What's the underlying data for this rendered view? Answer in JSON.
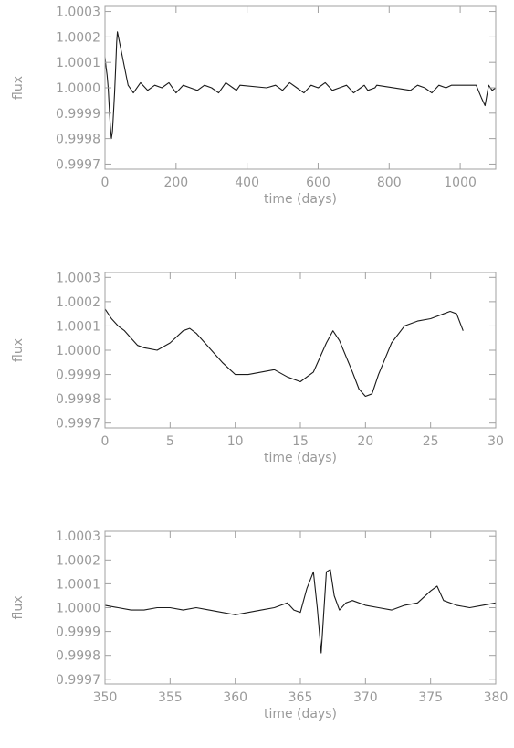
{
  "chart_data": [
    {
      "type": "line",
      "xlabel": "time (days)",
      "ylabel": "flux",
      "xlim": [
        0,
        1100
      ],
      "ylim": [
        0.99968,
        1.00032
      ],
      "xticks": [
        0,
        200,
        400,
        600,
        800,
        1000
      ],
      "xtick_labels": [
        "0",
        "200",
        "400",
        "600",
        "800",
        "1000"
      ],
      "yticks": [
        0.9997,
        0.9998,
        0.9999,
        1.0,
        1.0001,
        1.0002,
        1.0003
      ],
      "ytick_labels": [
        "0.9997",
        "0.9998",
        "0.9999",
        "1.0000",
        "1.0001",
        "1.0002",
        "1.0003"
      ],
      "grid": false,
      "series": [
        {
          "x": [
            0,
            3,
            6,
            9,
            12,
            15,
            18,
            21,
            24,
            27,
            30,
            33,
            35,
            65,
            80,
            100,
            120,
            140,
            160,
            180,
            200,
            220,
            240,
            260,
            280,
            300,
            320,
            340,
            360,
            370,
            380,
            455,
            480,
            500,
            520,
            540,
            560,
            580,
            600,
            620,
            640,
            660,
            680,
            700,
            720,
            730,
            740,
            760,
            765,
            860,
            880,
            900,
            920,
            940,
            960,
            975,
            1045,
            1060,
            1070,
            1080,
            1090,
            1100
          ],
          "y": [
            1.00012,
            1.00008,
            1.00005,
            1.0,
            0.99992,
            0.99985,
            0.9998,
            0.99983,
            0.9999,
            0.99998,
            1.00008,
            1.00018,
            1.00022,
            1.00001,
            0.99998,
            1.00002,
            0.99999,
            1.00001,
            1.0,
            1.00002,
            0.99998,
            1.00001,
            1.0,
            0.99999,
            1.00001,
            1.0,
            0.99998,
            1.00002,
            1.0,
            0.99999,
            1.00001,
            1.0,
            1.00001,
            0.99999,
            1.00002,
            1.0,
            0.99998,
            1.00001,
            1.0,
            1.00002,
            0.99999,
            1.0,
            1.00001,
            0.99998,
            1.0,
            1.00001,
            0.99999,
            1.0,
            1.00001,
            0.99999,
            1.00001,
            1.0,
            0.99998,
            1.00001,
            1.0,
            1.00001,
            1.00001,
            0.99996,
            0.99993,
            1.00001,
            0.99999,
            1.0
          ]
        }
      ]
    },
    {
      "type": "line",
      "xlabel": "time (days)",
      "ylabel": "flux",
      "xlim": [
        0,
        30
      ],
      "ylim": [
        0.99968,
        1.00032
      ],
      "xticks": [
        0,
        5,
        10,
        15,
        20,
        25,
        30
      ],
      "xtick_labels": [
        "0",
        "5",
        "10",
        "15",
        "20",
        "25",
        "30"
      ],
      "yticks": [
        0.9997,
        0.9998,
        0.9999,
        1.0,
        1.0001,
        1.0002,
        1.0003
      ],
      "ytick_labels": [
        "0.9997",
        "0.9998",
        "0.9999",
        "1.0000",
        "1.0001",
        "1.0002",
        "1.0003"
      ],
      "grid": false,
      "series": [
        {
          "x": [
            0,
            0.5,
            1,
            1.5,
            2,
            2.5,
            3,
            4,
            5,
            6,
            6.5,
            7,
            8,
            9,
            10,
            11,
            12,
            13,
            14,
            15,
            16,
            17,
            17.5,
            18,
            19,
            19.5,
            20,
            20.5,
            21,
            22,
            23,
            24,
            25,
            26,
            26.5,
            27,
            27.5
          ],
          "y": [
            1.00017,
            1.00013,
            1.0001,
            1.00008,
            1.00005,
            1.00002,
            1.00001,
            1.0,
            1.00003,
            1.00008,
            1.00009,
            1.00007,
            1.00001,
            0.99995,
            0.9999,
            0.9999,
            0.99991,
            0.99992,
            0.99989,
            0.99987,
            0.99991,
            1.00003,
            1.00008,
            1.00004,
            0.99991,
            0.99984,
            0.99981,
            0.99982,
            0.9999,
            1.00003,
            1.0001,
            1.00012,
            1.00013,
            1.00015,
            1.00016,
            1.00015,
            1.00008
          ]
        }
      ]
    },
    {
      "type": "line",
      "xlabel": "time (days)",
      "ylabel": "flux",
      "xlim": [
        350,
        380
      ],
      "ylim": [
        0.99968,
        1.00032
      ],
      "xticks": [
        350,
        355,
        360,
        365,
        370,
        375,
        380
      ],
      "xtick_labels": [
        "350",
        "355",
        "360",
        "365",
        "370",
        "375",
        "380"
      ],
      "yticks": [
        0.9997,
        0.9998,
        0.9999,
        1.0,
        1.0001,
        1.0002,
        1.0003
      ],
      "ytick_labels": [
        "0.9997",
        "0.9998",
        "0.9999",
        "1.0000",
        "1.0001",
        "1.0002",
        "1.0003"
      ],
      "grid": false,
      "series": [
        {
          "x": [
            350,
            351,
            352,
            353,
            354,
            355,
            356,
            357,
            358,
            359,
            360,
            361,
            362,
            363,
            363.5,
            364,
            364.5,
            365,
            365.5,
            366,
            366.3,
            366.6,
            367,
            367.3,
            367.6,
            368,
            368.5,
            369,
            370,
            371,
            372,
            373,
            374,
            375,
            375.5,
            376,
            377,
            378,
            379,
            380
          ],
          "y": [
            1.00001,
            1.0,
            0.99999,
            0.99999,
            1.0,
            1.0,
            0.99999,
            1.0,
            0.99999,
            0.99998,
            0.99997,
            0.99998,
            0.99999,
            1.0,
            1.00001,
            1.00002,
            0.99999,
            0.99998,
            1.00008,
            1.00015,
            1.0,
            0.99981,
            1.00015,
            1.00016,
            1.00005,
            0.99999,
            1.00002,
            1.00003,
            1.00001,
            1.0,
            0.99999,
            1.00001,
            1.00002,
            1.00007,
            1.00009,
            1.00003,
            1.00001,
            1.0,
            1.00001,
            1.00002
          ]
        }
      ]
    }
  ]
}
